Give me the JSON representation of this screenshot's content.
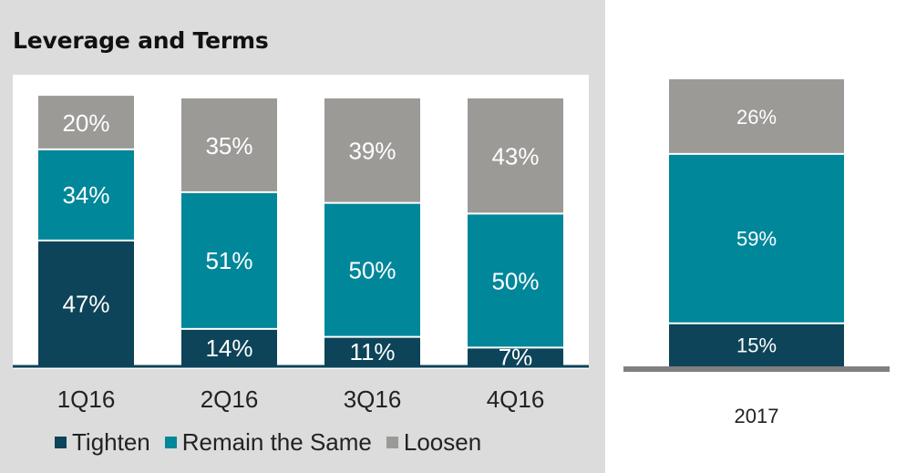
{
  "title": "Leverage and Terms",
  "colors": {
    "Tighten": "#0d4459",
    "Remain the Same": "#00879a",
    "Loosen": "#9c9a97",
    "background_panel": "#dcdcdc",
    "axis": "#0d4459",
    "axis_right": "#808080"
  },
  "legend": [
    "Tighten",
    "Remain the Same",
    "Loosen"
  ],
  "chart_data": [
    {
      "type": "bar",
      "stacked": true,
      "title": "Leverage and Terms",
      "categories": [
        "1Q16",
        "2Q16",
        "3Q16",
        "4Q16"
      ],
      "series": [
        {
          "name": "Tighten",
          "values": [
            47,
            14,
            11,
            7
          ],
          "labels": [
            "47%",
            "14%",
            "11%",
            "7%"
          ]
        },
        {
          "name": "Remain the Same",
          "values": [
            34,
            51,
            50,
            50
          ],
          "labels": [
            "34%",
            "51%",
            "50%",
            "50%"
          ]
        },
        {
          "name": "Loosen",
          "values": [
            20,
            35,
            39,
            43
          ],
          "labels": [
            "20%",
            "35%",
            "39%",
            "43%"
          ]
        }
      ],
      "ylim": [
        0,
        100
      ],
      "legend_position": "bottom"
    },
    {
      "type": "bar",
      "stacked": true,
      "categories": [
        "2017"
      ],
      "series": [
        {
          "name": "Tighten",
          "values": [
            15
          ],
          "labels": [
            "15%"
          ]
        },
        {
          "name": "Remain the Same",
          "values": [
            59
          ],
          "labels": [
            "59%"
          ]
        },
        {
          "name": "Loosen",
          "values": [
            26
          ],
          "labels": [
            "26%"
          ]
        }
      ],
      "ylim": [
        0,
        100
      ]
    }
  ]
}
